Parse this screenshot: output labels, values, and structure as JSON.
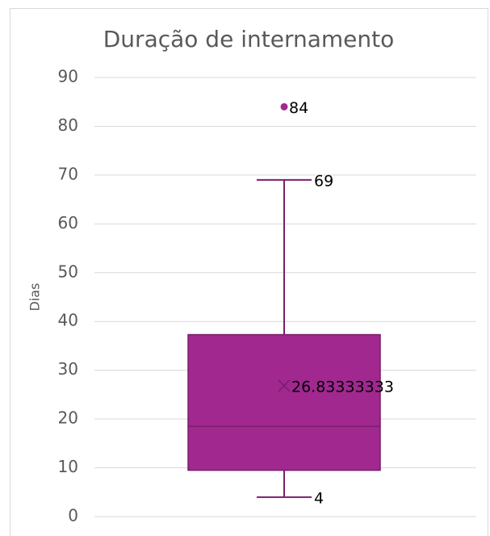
{
  "chart_data": {
    "type": "box",
    "title": "Duração de internamento",
    "y_label": "Dias",
    "ylim": [
      0,
      90
    ],
    "yticks": [
      0,
      10,
      20,
      30,
      40,
      50,
      60,
      70,
      80,
      90
    ],
    "grid": true,
    "color": "#a0288f",
    "edge_color": "#7b1e6e",
    "whisker_low": 4,
    "q1": 9.5,
    "median": 18.5,
    "q3": 37.3,
    "whisker_high": 69,
    "mean": 26.83333333,
    "outliers": [
      84
    ]
  }
}
